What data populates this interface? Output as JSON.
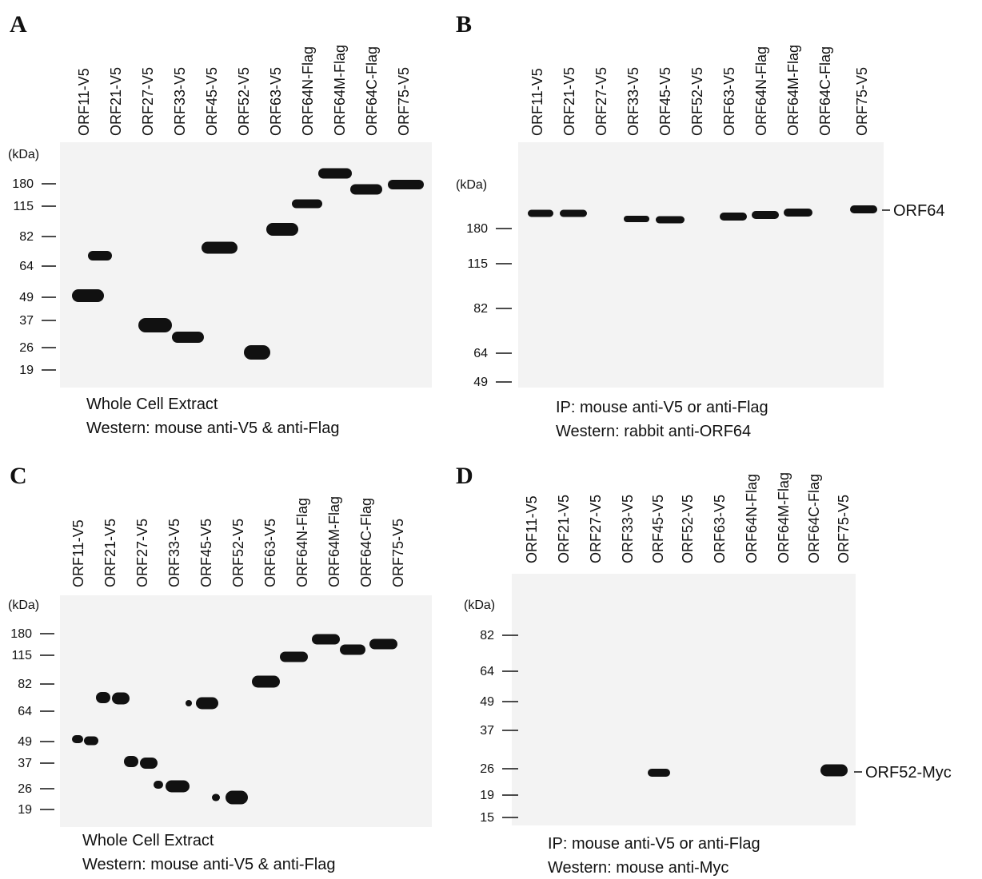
{
  "panels": [
    {
      "letter": "A",
      "lanes": [
        "ORF11-V5",
        "ORF21-V5",
        "ORF27-V5",
        "ORF33-V5",
        "ORF45-V5",
        "ORF52-V5",
        "ORF63-V5",
        "ORF64N-Flag",
        "ORF64M-Flag",
        "ORF64C-Flag",
        "ORF75-V5"
      ],
      "unit": "(kDa)",
      "markers": [
        180,
        115,
        82,
        64,
        49,
        37,
        26,
        19
      ],
      "captions": [
        "Whole Cell Extract",
        "Western: mouse anti-V5 & anti-Flag"
      ]
    },
    {
      "letter": "B",
      "lanes": [
        "ORF11-V5",
        "ORF21-V5",
        "ORF27-V5",
        "ORF33-V5",
        "ORF45-V5",
        "ORF52-V5",
        "ORF63-V5",
        "ORF64N-Flag",
        "ORF64M-Flag",
        "ORF64C-Flag",
        "ORF75-V5"
      ],
      "unit": "(kDa)",
      "markers": [
        180,
        115,
        82,
        64,
        49
      ],
      "band_label": "ORF64",
      "captions": [
        "IP: mouse anti-V5 or anti-Flag",
        "Western:  rabbit anti-ORF64"
      ]
    },
    {
      "letter": "C",
      "lanes": [
        "ORF11-V5",
        "ORF21-V5",
        "ORF27-V5",
        "ORF33-V5",
        "ORF45-V5",
        "ORF52-V5",
        "ORF63-V5",
        "ORF64N-Flag",
        "ORF64M-Flag",
        "ORF64C-Flag",
        "ORF75-V5"
      ],
      "unit": "(kDa)",
      "markers": [
        180,
        115,
        82,
        64,
        49,
        37,
        26,
        19
      ],
      "captions": [
        "Whole Cell Extract",
        "Western: mouse anti-V5 & anti-Flag"
      ]
    },
    {
      "letter": "D",
      "lanes": [
        "ORF11-V5",
        "ORF21-V5",
        "ORF27-V5",
        "ORF33-V5",
        "ORF45-V5",
        "ORF52-V5",
        "ORF63-V5",
        "ORF64N-Flag",
        "ORF64M-Flag",
        "ORF64C-Flag",
        "ORF75-V5"
      ],
      "unit": "(kDa)",
      "markers": [
        82,
        64,
        49,
        37,
        26,
        19,
        15
      ],
      "band_label": "ORF52-Myc",
      "captions": [
        "IP: mouse anti-V5 or anti-Flag",
        "Western:  mouse anti-Myc"
      ]
    }
  ]
}
